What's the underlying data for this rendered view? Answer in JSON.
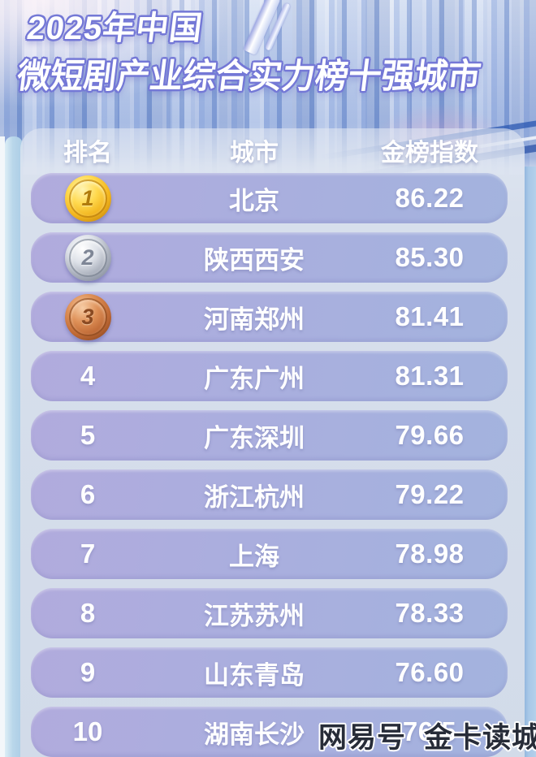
{
  "poster": {
    "title_line1": "2025年中国",
    "title_line2": "微短剧产业综合实力榜十强城市"
  },
  "table": {
    "headers": {
      "rank": "排名",
      "city": "城市",
      "score": "金榜指数"
    },
    "rows": [
      {
        "rank": "1",
        "medal": "gold",
        "city": "北京",
        "score": "86.22"
      },
      {
        "rank": "2",
        "medal": "silver",
        "city": "陕西西安",
        "score": "85.30"
      },
      {
        "rank": "3",
        "medal": "bronze",
        "city": "河南郑州",
        "score": "81.41"
      },
      {
        "rank": "4",
        "medal": null,
        "city": "广东广州",
        "score": "81.31"
      },
      {
        "rank": "5",
        "medal": null,
        "city": "广东深圳",
        "score": "79.66"
      },
      {
        "rank": "6",
        "medal": null,
        "city": "浙江杭州",
        "score": "79.22"
      },
      {
        "rank": "7",
        "medal": null,
        "city": "上海",
        "score": "78.98"
      },
      {
        "rank": "8",
        "medal": null,
        "city": "江苏苏州",
        "score": "78.33"
      },
      {
        "rank": "9",
        "medal": null,
        "city": "山东青岛",
        "score": "76.60"
      },
      {
        "rank": "10",
        "medal": null,
        "city": "湖南长沙",
        "score": "76.5",
        "score_obscured": true
      }
    ]
  },
  "watermark": {
    "publisher": "网易号",
    "account": "金卡读城"
  },
  "colors": {
    "row_fill_left": "#b1abdd",
    "row_fill_right": "#a3b3de",
    "panel": "#d7dfec",
    "title_fill": "#ffffff",
    "title_outline": "#7478d6",
    "gold": "#f2b51e",
    "silver": "#aab0bc",
    "bronze": "#c06a36",
    "watermark_text": "#272c38",
    "side_strip_left": "#b9d6ea",
    "side_strip_right": "#a8c8e8"
  },
  "chart_data": {
    "type": "table",
    "title": "2025年中国微短剧产业综合实力榜十强城市",
    "columns": [
      "排名",
      "城市",
      "金榜指数"
    ],
    "rows": [
      [
        1,
        "北京",
        86.22
      ],
      [
        2,
        "陕西西安",
        85.3
      ],
      [
        3,
        "河南郑州",
        81.41
      ],
      [
        4,
        "广东广州",
        81.31
      ],
      [
        5,
        "广东深圳",
        79.66
      ],
      [
        6,
        "浙江杭州",
        79.22
      ],
      [
        7,
        "上海",
        78.98
      ],
      [
        8,
        "江苏苏州",
        78.33
      ],
      [
        9,
        "山东青岛",
        76.6
      ],
      [
        10,
        "湖南长沙",
        "76.5 (last digit obscured by watermark)"
      ]
    ],
    "notes": "ranks 1-3 shown as gold/silver/bronze coin medals; legend none; values read from data labels"
  }
}
